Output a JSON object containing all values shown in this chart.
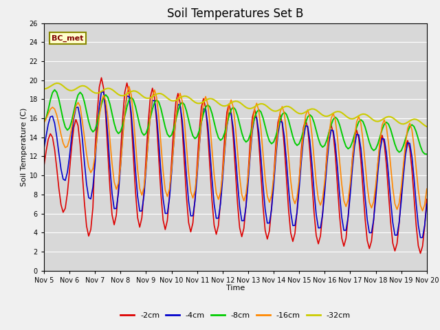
{
  "title": "Soil Temperatures Set B",
  "xlabel": "Time",
  "ylabel": "Soil Temperature (C)",
  "ylim": [
    0,
    26
  ],
  "yticks": [
    0,
    2,
    4,
    6,
    8,
    10,
    12,
    14,
    16,
    18,
    20,
    22,
    24,
    26
  ],
  "xtick_labels": [
    "Nov 5",
    "Nov 6",
    "Nov 7",
    "Nov 8",
    "Nov 9",
    "Nov 10",
    "Nov 11",
    "Nov 12",
    "Nov 13",
    "Nov 14",
    "Nov 15",
    "Nov 16",
    "Nov 17",
    "Nov 18",
    "Nov 19",
    "Nov 20"
  ],
  "colors": {
    "-2cm": "#dd0000",
    "-4cm": "#0000cc",
    "-8cm": "#00cc00",
    "-16cm": "#ff8800",
    "-32cm": "#cccc00"
  },
  "annotation": "BC_met",
  "background_color": "#d8d8d8",
  "plot_bg_color": "#d8d8d8"
}
